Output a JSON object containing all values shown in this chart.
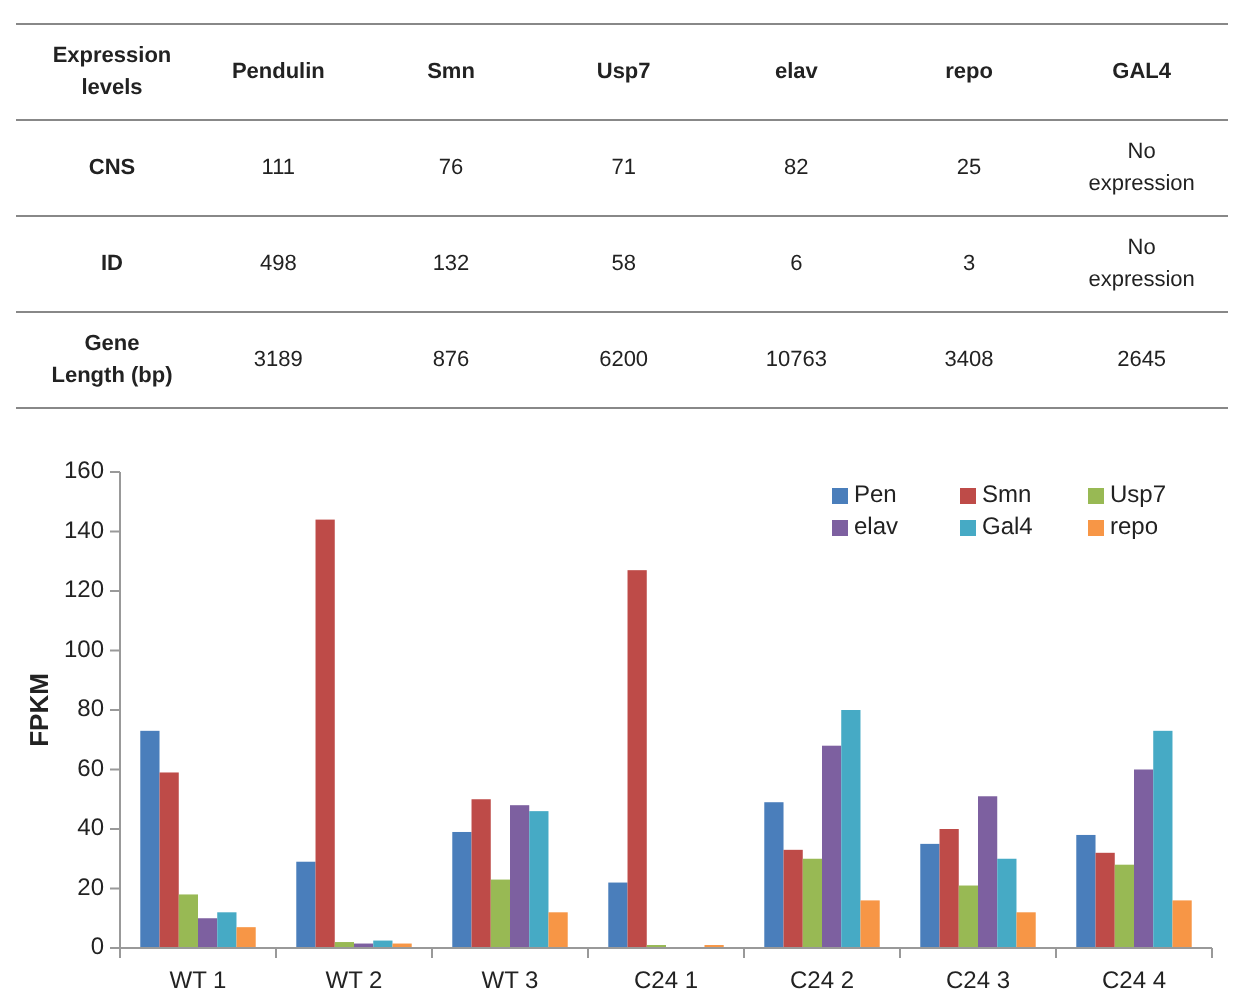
{
  "chart_data": [
    {
      "type": "other",
      "title": "Expression levels",
      "categories": [
        "Pendulin",
        "Smn",
        "Usp7",
        "elav",
        "repo",
        "GAL4"
      ],
      "y_categories": [
        "CNS",
        "ID",
        "Gene Length (bp)"
      ],
      "cell_labels": [
        [
          "111",
          "76",
          "71",
          "82",
          "25",
          "No expression"
        ],
        [
          "498",
          "132",
          "58",
          "6",
          "3",
          "No expression"
        ],
        [
          "3189",
          "876",
          "6200",
          "10763",
          "3408",
          "2645"
        ]
      ]
    },
    {
      "type": "bar",
      "ylabel": "FPKM",
      "categories": [
        "WT 1",
        "WT 2",
        "WT 3",
        "C24 1",
        "C24 2",
        "C24 3",
        "C24 4"
      ],
      "ylim": [
        0,
        160
      ],
      "yticks": [
        0,
        20,
        40,
        60,
        80,
        100,
        120,
        140,
        160
      ],
      "grid": false,
      "legend": "top right",
      "series": [
        {
          "name": "Pen",
          "color": "#4a7ebb",
          "values": [
            73,
            29,
            39,
            22,
            49,
            35,
            38
          ]
        },
        {
          "name": "Smn",
          "color": "#be4b48",
          "values": [
            59,
            144,
            50,
            127,
            33,
            40,
            32
          ]
        },
        {
          "name": "Usp7",
          "color": "#98b954",
          "values": [
            18,
            2,
            23,
            1,
            30,
            21,
            28
          ]
        },
        {
          "name": "elav",
          "color": "#7d60a0",
          "values": [
            10,
            1.5,
            48,
            null,
            68,
            51,
            60
          ]
        },
        {
          "name": "Gal4",
          "color": "#46aac5",
          "values": [
            12,
            2.5,
            46,
            null,
            80,
            30,
            73
          ]
        },
        {
          "name": "repo",
          "color": "#f79646",
          "values": [
            7,
            1.5,
            12,
            1,
            16,
            12,
            16
          ]
        }
      ]
    }
  ]
}
